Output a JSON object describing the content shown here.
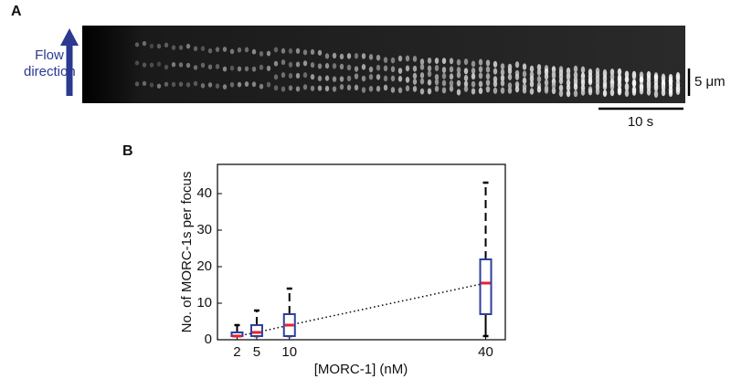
{
  "panel_a": {
    "label": "A",
    "flow_label": "Flow direction",
    "scale_y": "5 μm",
    "scale_x": "10 s"
  },
  "chart_data": {
    "type": "box",
    "panel_label": "B",
    "x": [
      2,
      5,
      10,
      40
    ],
    "min": [
      1,
      1,
      1,
      1
    ],
    "q1": [
      1,
      1,
      1,
      7
    ],
    "median": [
      1,
      2,
      4,
      15.5
    ],
    "q3": [
      2,
      4,
      7,
      22
    ],
    "max": [
      4,
      8,
      14,
      43
    ],
    "box_color": "#2e3f9e",
    "median_color": "#e8202a",
    "whisker_color": "#000000",
    "xlabel": "[MORC-1] (nM)",
    "ylabel": "No. of MORC-1s per focus",
    "xlim": [
      -1,
      43
    ],
    "ylim": [
      0,
      48
    ],
    "xticks": [
      2,
      5,
      10,
      40
    ],
    "yticks": [
      0,
      10,
      20,
      30,
      40
    ]
  }
}
